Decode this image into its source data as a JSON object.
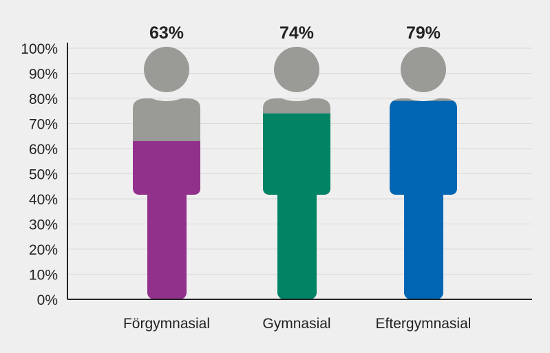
{
  "chart_data": {
    "type": "pictogram-bar",
    "categories": [
      "Förgymnasial",
      "Gymnasial",
      "Eftergymnasial"
    ],
    "values": [
      63,
      74,
      79
    ],
    "value_labels": [
      "63%",
      "74%",
      "79%"
    ],
    "colors": [
      "#92318c",
      "#008464",
      "#0066b3"
    ],
    "unfilled_color": "#9a9a96",
    "ylim": [
      0,
      100
    ],
    "yticks": [
      "0%",
      "10%",
      "20%",
      "30%",
      "40%",
      "50%",
      "60%",
      "70%",
      "80%",
      "90%",
      "100%"
    ],
    "grid": true,
    "title": "",
    "xlabel": "",
    "ylabel": ""
  }
}
